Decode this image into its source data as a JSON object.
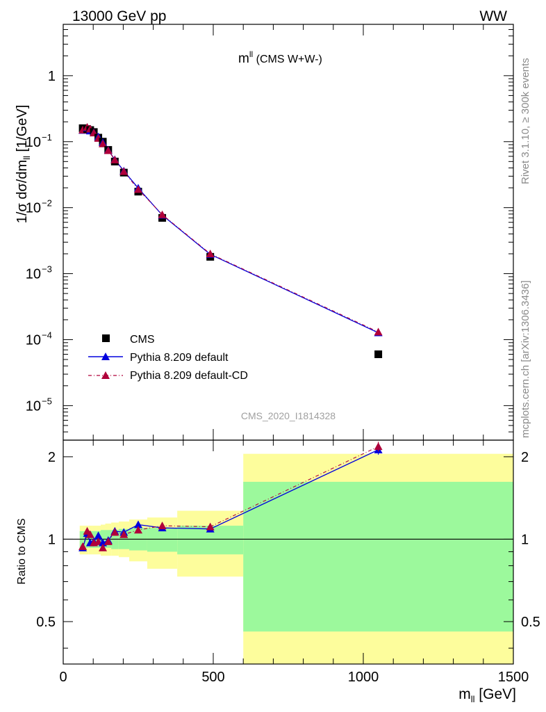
{
  "header": {
    "left": "13000 GeV pp",
    "right": "WW"
  },
  "plot_title": {
    "main": "m",
    "sup": "ll",
    "rest": " (CMS W+W-)"
  },
  "watermark": "CMS_2020_I1814328",
  "side_text": {
    "rivet": "Rivet 3.1.10, ≥ 300k events",
    "site": "mcplots.cern.ch [arXiv:1306.3436]"
  },
  "top_axis": {
    "ylabel_main": "1/σ dσ/dm",
    "ylabel_sub": "ll",
    "ylabel_unit": " [1/GeV]",
    "ticks": [
      {
        "exp": 0,
        "label": "1",
        "sup": ""
      },
      {
        "exp": -1,
        "label": "10",
        "sup": "−1"
      },
      {
        "exp": -2,
        "label": "10",
        "sup": "−2"
      },
      {
        "exp": -3,
        "label": "10",
        "sup": "−3"
      },
      {
        "exp": -4,
        "label": "10",
        "sup": "−4"
      },
      {
        "exp": -5,
        "label": "10",
        "sup": "−5"
      }
    ]
  },
  "bottom_axis": {
    "ylabel": "Ratio to CMS",
    "yticks": [
      "0.5",
      "1",
      "2"
    ],
    "xlabel_main": "m",
    "xlabel_sub": "ll",
    "xlabel_unit": " [GeV]",
    "xticks": [
      "0",
      "500",
      "1000",
      "1500"
    ]
  },
  "legend": {
    "cms": "CMS",
    "default": "Pythia 8.209 default",
    "cd": "Pythia 8.209 default-CD"
  },
  "colors": {
    "cms": "#000000",
    "default": "#0000dd",
    "cd": "#b0003a",
    "band_inner": "#9cf99c",
    "band_outer": "#fdfd9c"
  },
  "chart_data": {
    "type": "line",
    "xlim": [
      0,
      1500
    ],
    "top_ylim": [
      3e-06,
      6.0
    ],
    "top_yscale": "log",
    "ratio_ylim": [
      0.35,
      2.3
    ],
    "ratio_yscale": "log",
    "bins": [
      {
        "lo": 55,
        "hi": 75,
        "x": 65,
        "cms": 0.16,
        "def_ratio": 0.93,
        "cd_ratio": 0.94,
        "inner": [
          0.93,
          1.07
        ],
        "outer": [
          0.88,
          1.12
        ]
      },
      {
        "lo": 75,
        "hi": 85,
        "x": 80,
        "cms": 0.155,
        "def_ratio": 1.05,
        "cd_ratio": 1.07,
        "inner": [
          0.93,
          1.07
        ],
        "outer": [
          0.88,
          1.12
        ]
      },
      {
        "lo": 85,
        "hi": 95,
        "x": 90,
        "cms": 0.15,
        "def_ratio": 0.97,
        "cd_ratio": 1.04,
        "inner": [
          0.93,
          1.07
        ],
        "outer": [
          0.88,
          1.12
        ]
      },
      {
        "lo": 95,
        "hi": 110,
        "x": 102,
        "cms": 0.14,
        "def_ratio": 0.98,
        "cd_ratio": 0.97,
        "inner": [
          0.93,
          1.07
        ],
        "outer": [
          0.88,
          1.12
        ]
      },
      {
        "lo": 110,
        "hi": 125,
        "x": 117,
        "cms": 0.115,
        "def_ratio": 1.03,
        "cd_ratio": 0.98,
        "inner": [
          0.93,
          1.07
        ],
        "outer": [
          0.88,
          1.12
        ]
      },
      {
        "lo": 125,
        "hi": 140,
        "x": 132,
        "cms": 0.1,
        "def_ratio": 0.97,
        "cd_ratio": 0.93,
        "inner": [
          0.93,
          1.08
        ],
        "outer": [
          0.87,
          1.13
        ]
      },
      {
        "lo": 140,
        "hi": 160,
        "x": 150,
        "cms": 0.075,
        "def_ratio": 0.99,
        "cd_ratio": 0.98,
        "inner": [
          0.93,
          1.08
        ],
        "outer": [
          0.87,
          1.14
        ]
      },
      {
        "lo": 160,
        "hi": 185,
        "x": 172,
        "cms": 0.05,
        "def_ratio": 1.07,
        "cd_ratio": 1.06,
        "inner": [
          0.92,
          1.08
        ],
        "outer": [
          0.87,
          1.15
        ]
      },
      {
        "lo": 185,
        "hi": 220,
        "x": 202,
        "cms": 0.034,
        "def_ratio": 1.06,
        "cd_ratio": 1.04,
        "inner": [
          0.92,
          1.09
        ],
        "outer": [
          0.86,
          1.16
        ]
      },
      {
        "lo": 220,
        "hi": 280,
        "x": 250,
        "cms": 0.0175,
        "def_ratio": 1.13,
        "cd_ratio": 1.08,
        "inner": [
          0.91,
          1.1
        ],
        "outer": [
          0.83,
          1.18
        ]
      },
      {
        "lo": 280,
        "hi": 380,
        "x": 330,
        "cms": 0.007,
        "def_ratio": 1.1,
        "cd_ratio": 1.12,
        "inner": [
          0.9,
          1.1
        ],
        "outer": [
          0.78,
          1.2
        ]
      },
      {
        "lo": 380,
        "hi": 600,
        "x": 490,
        "cms": 0.0018,
        "def_ratio": 1.09,
        "cd_ratio": 1.11,
        "inner": [
          0.88,
          1.12
        ],
        "outer": [
          0.73,
          1.27
        ]
      },
      {
        "lo": 600,
        "hi": 1500,
        "x": 1050,
        "cms": 6e-05,
        "def_ratio": 2.12,
        "cd_ratio": 2.18,
        "inner": [
          0.46,
          1.62
        ],
        "outer": [
          0.2,
          2.05
        ]
      }
    ],
    "series": [
      {
        "name": "CMS",
        "key": "cms"
      },
      {
        "name": "Pythia 8.209 default",
        "key": "def_ratio"
      },
      {
        "name": "Pythia 8.209 default-CD",
        "key": "cd_ratio"
      }
    ]
  }
}
